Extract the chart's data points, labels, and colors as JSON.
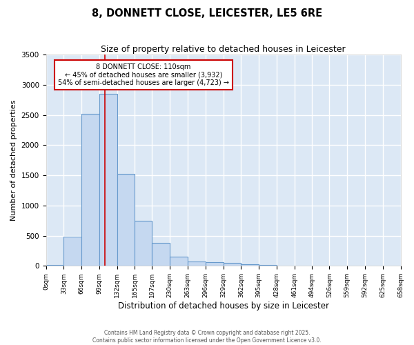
{
  "title1": "8, DONNETT CLOSE, LEICESTER, LE5 6RE",
  "title2": "Size of property relative to detached houses in Leicester",
  "xlabel": "Distribution of detached houses by size in Leicester",
  "ylabel": "Number of detached properties",
  "bin_edges": [
    0,
    33,
    66,
    99,
    132,
    165,
    197,
    230,
    263,
    296,
    329,
    362,
    395,
    428,
    461,
    494,
    526,
    559,
    592,
    625,
    658
  ],
  "bar_heights": [
    20,
    480,
    2520,
    2850,
    1530,
    750,
    380,
    155,
    75,
    60,
    50,
    30,
    15,
    5,
    3,
    2,
    1,
    1,
    1,
    1
  ],
  "bar_color": "#c5d8f0",
  "bar_edge_color": "#6699cc",
  "plot_bg_color": "#dce8f5",
  "fig_bg_color": "#ffffff",
  "grid_color": "#ffffff",
  "red_line_x": 110,
  "annotation_text": "8 DONNETT CLOSE: 110sqm\n← 45% of detached houses are smaller (3,932)\n54% of semi-detached houses are larger (4,723) →",
  "annotation_box_color": "#ffffff",
  "annotation_box_edge": "#cc0000",
  "ylim": [
    0,
    3500
  ],
  "yticks": [
    0,
    500,
    1000,
    1500,
    2000,
    2500,
    3000,
    3500
  ],
  "xtick_labels": [
    "0sqm",
    "33sqm",
    "66sqm",
    "99sqm",
    "132sqm",
    "165sqm",
    "197sqm",
    "230sqm",
    "263sqm",
    "296sqm",
    "329sqm",
    "362sqm",
    "395sqm",
    "428sqm",
    "461sqm",
    "494sqm",
    "526sqm",
    "559sqm",
    "592sqm",
    "625sqm",
    "658sqm"
  ],
  "footer1": "Contains HM Land Registry data © Crown copyright and database right 2025.",
  "footer2": "Contains public sector information licensed under the Open Government Licence v3.0."
}
